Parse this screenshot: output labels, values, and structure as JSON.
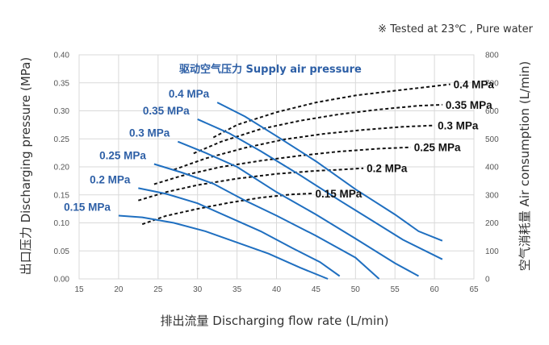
{
  "note": "※  Tested at  23℃ , Pure water",
  "chart_data": {
    "type": "line",
    "title": "驱动空气压力 Supply air pressure",
    "xlabel": "排出流量 Discharging flow rate (L/min)",
    "ylabel_left": "出口压力 Discharging pressure (MPa)",
    "ylabel_right": "空气消耗量 Air consumption (L/min)",
    "xlim": [
      15,
      65
    ],
    "ylim_left": [
      0,
      0.4
    ],
    "ylim_right": [
      0,
      800
    ],
    "x_ticks": [
      "15",
      "20",
      "25",
      "30",
      "35",
      "40",
      "45",
      "50",
      "55",
      "60",
      "65"
    ],
    "y_left_ticks": [
      "0.00",
      "0.05",
      "0.10",
      "0.15",
      "0.20",
      "0.25",
      "0.30",
      "0.35",
      "0.40"
    ],
    "y_right_ticks": [
      "0",
      "100",
      "200",
      "300",
      "400",
      "500",
      "600",
      "700",
      "800"
    ],
    "grid": true,
    "colors": {
      "discharge": "#1f6fc0",
      "air": "#111111",
      "discharge_label": "#2d5fa6",
      "grid": "#d9d9d9"
    },
    "discharge_series": [
      {
        "name": "0.4 MPa",
        "x": [
          32.5,
          36,
          40,
          45,
          50,
          55,
          58,
          61
        ],
        "y": [
          0.315,
          0.29,
          0.255,
          0.21,
          0.16,
          0.115,
          0.085,
          0.068
        ]
      },
      {
        "name": "0.35 MPa",
        "x": [
          30,
          34,
          38,
          43,
          48,
          52,
          56,
          61
        ],
        "y": [
          0.285,
          0.26,
          0.228,
          0.185,
          0.14,
          0.105,
          0.07,
          0.035
        ]
      },
      {
        "name": "0.3 MPa",
        "x": [
          27.5,
          31,
          35,
          40,
          45,
          50,
          55,
          58
        ],
        "y": [
          0.245,
          0.225,
          0.2,
          0.155,
          0.115,
          0.072,
          0.028,
          0.005
        ]
      },
      {
        "name": "0.25 MPa",
        "x": [
          24.5,
          28,
          32,
          36,
          40,
          45,
          50,
          53
        ],
        "y": [
          0.205,
          0.19,
          0.17,
          0.14,
          0.113,
          0.077,
          0.038,
          0.0
        ]
      },
      {
        "name": "0.2 MPa",
        "x": [
          22.5,
          26,
          30,
          34,
          38,
          42,
          45.5,
          48
        ],
        "y": [
          0.162,
          0.152,
          0.135,
          0.11,
          0.085,
          0.055,
          0.03,
          0.005
        ]
      },
      {
        "name": "0.15 MPa",
        "x": [
          20,
          23,
          27,
          31,
          35,
          39,
          43,
          46.5
        ],
        "y": [
          0.113,
          0.11,
          0.1,
          0.085,
          0.065,
          0.045,
          0.02,
          0.0
        ]
      }
    ],
    "air_series": [
      {
        "name": "0.4 MPa",
        "x": [
          32,
          35,
          40,
          45,
          50,
          55,
          60,
          62
        ],
        "y": [
          505,
          550,
          595,
          630,
          655,
          672,
          688,
          695
        ]
      },
      {
        "name": "0.35 MPa",
        "x": [
          29.5,
          33,
          38,
          43,
          48,
          53,
          58,
          61
        ],
        "y": [
          448,
          490,
          535,
          565,
          588,
          605,
          618,
          622
        ]
      },
      {
        "name": "0.3 MPa",
        "x": [
          27,
          31,
          36,
          41,
          46,
          51,
          56,
          60
        ],
        "y": [
          390,
          430,
          468,
          498,
          518,
          532,
          543,
          548
        ]
      },
      {
        "name": "0.25 MPa",
        "x": [
          24.5,
          28,
          33,
          38,
          43,
          48,
          53,
          57
        ],
        "y": [
          338,
          368,
          400,
          422,
          440,
          455,
          465,
          470
        ]
      },
      {
        "name": "0.2 MPa",
        "x": [
          22.5,
          26,
          30,
          35,
          40,
          45,
          48,
          51
        ],
        "y": [
          280,
          310,
          335,
          358,
          375,
          386,
          390,
          395
        ]
      },
      {
        "name": "0.15 MPa",
        "x": [
          23,
          26,
          30,
          34,
          38,
          40,
          42,
          44.5
        ],
        "y": [
          195,
          225,
          250,
          272,
          290,
          296,
          302,
          305
        ]
      }
    ]
  }
}
